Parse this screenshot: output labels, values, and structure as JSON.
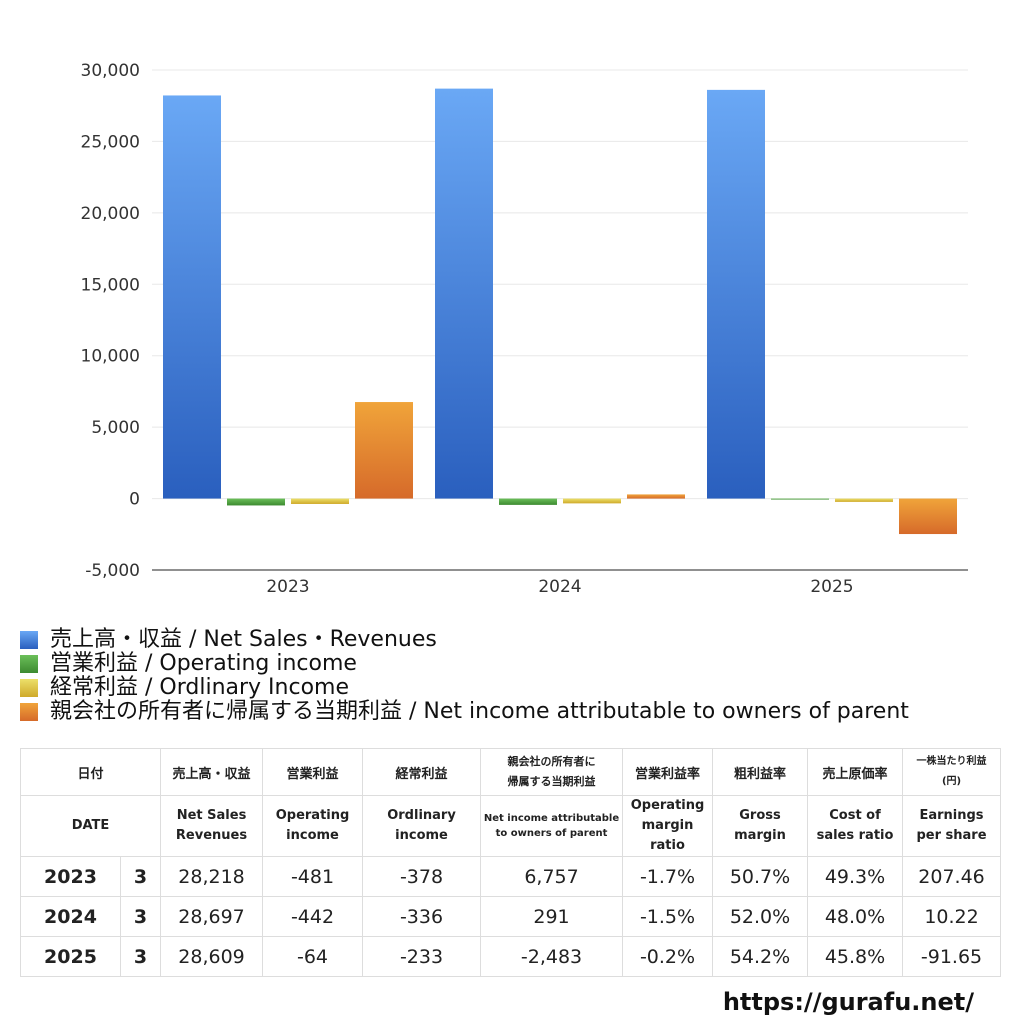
{
  "chart_data": {
    "type": "bar",
    "categories": [
      "2023",
      "2024",
      "2025"
    ],
    "series": [
      {
        "name": "売上高・収益 / Net Sales・Revenues",
        "values": [
          28218,
          28697,
          28609
        ]
      },
      {
        "name": "営業利益 / Operating income",
        "values": [
          -481,
          -442,
          -64
        ]
      },
      {
        "name": "経常利益 / Ordlinary Income",
        "values": [
          -378,
          -336,
          -233
        ]
      },
      {
        "name": "親会社の所有者に帰属する当期利益 / Net income attributable to owners of parent",
        "values": [
          6757,
          291,
          -2483
        ]
      }
    ],
    "ylim": [
      -5000,
      30000
    ],
    "yticks": [
      "30,000",
      "25,000",
      "20,000",
      "15,000",
      "10,000",
      "5,000",
      "0",
      "-5,000"
    ],
    "grid": true,
    "legend_position": "bottom-left",
    "colors": {
      "net_sales": [
        "#6aa8f5",
        "#2a5fbe"
      ],
      "operating": [
        "#6bbf5a",
        "#3d8a30"
      ],
      "ordinary": [
        "#ece06a",
        "#cfa92a"
      ],
      "net_income": [
        "#f0a43a",
        "#d66a2a"
      ]
    }
  },
  "table": {
    "header_jp": [
      "日付",
      "売上高・収益",
      "営業利益",
      "経常利益",
      "親会社の所有者に\n帰属する当期利益",
      "営業利益率",
      "粗利益率",
      "売上原価率",
      "一株当たり利益\n(円)"
    ],
    "header_en": [
      "DATE",
      "Net Sales\nRevenues",
      "Operating\nincome",
      "Ordlinary\nincome",
      "Net income attributable\nto owners of parent",
      "Operating\nmargin\nratio",
      "Gross\nmargin",
      "Cost of\nsales ratio",
      "Earnings\nper share"
    ],
    "rows": [
      {
        "year": "2023",
        "month": "3",
        "net_sales": "28,218",
        "operating": "-481",
        "ordinary": "-378",
        "net_income": "6,757",
        "op_margin": "-1.7%",
        "gross_margin": "50.7%",
        "cost_ratio": "49.3%",
        "eps": "207.46"
      },
      {
        "year": "2024",
        "month": "3",
        "net_sales": "28,697",
        "operating": "-442",
        "ordinary": "-336",
        "net_income": "291",
        "op_margin": "-1.5%",
        "gross_margin": "52.0%",
        "cost_ratio": "48.0%",
        "eps": "10.22"
      },
      {
        "year": "2025",
        "month": "3",
        "net_sales": "28,609",
        "operating": "-64",
        "ordinary": "-233",
        "net_income": "-2,483",
        "op_margin": "-0.2%",
        "gross_margin": "54.2%",
        "cost_ratio": "45.8%",
        "eps": "-91.65"
      }
    ]
  },
  "footer": {
    "url": "https://gurafu.net/"
  }
}
